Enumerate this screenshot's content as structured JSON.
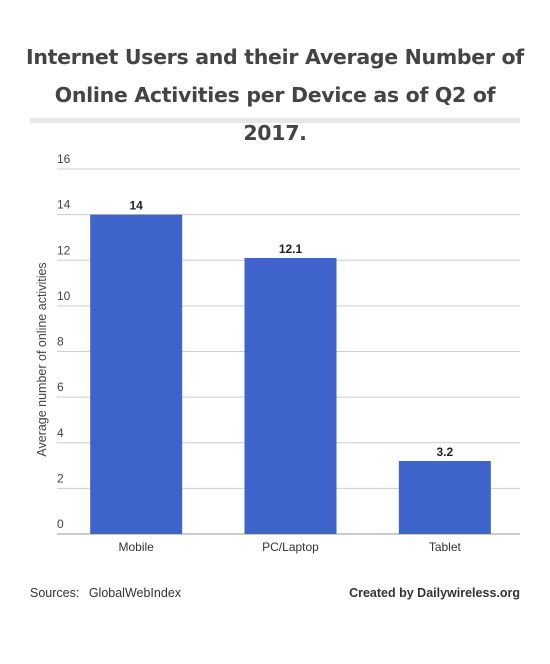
{
  "title": "Internet Users and their Average Number of Online Activities per Device as of Q2 of 2017.",
  "footer": {
    "sources_label": "Sources:",
    "sources_value": "GlobalWebIndex",
    "credit": "Created by Dailywireless.org"
  },
  "chart_data": {
    "type": "bar",
    "categories": [
      "Mobile",
      "PC/Laptop",
      "Tablet"
    ],
    "values": [
      14,
      12.1,
      3.2
    ],
    "data_labels": [
      "14",
      "12.1",
      "3.2"
    ],
    "title": "Internet Users and their Average Number of Online Activities per Device as of Q2 of 2017.",
    "xlabel": "",
    "ylabel": "Average number of online activities",
    "ylim": [
      0,
      16
    ],
    "yticks": [
      0,
      2,
      4,
      6,
      8,
      10,
      12,
      14,
      16
    ],
    "grid": true,
    "legend": "none",
    "bar_color": "#3e64cc",
    "grid_color": "#cccccc"
  }
}
